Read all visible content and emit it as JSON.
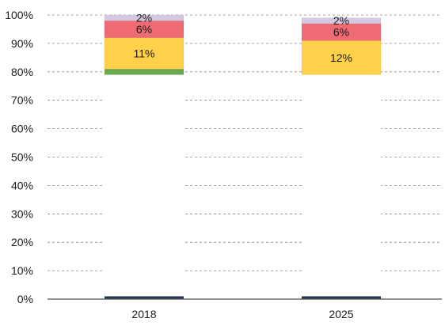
{
  "chart_data": {
    "type": "bar",
    "stacked": true,
    "categories": [
      "2018",
      "2025"
    ],
    "ylim": [
      0,
      100
    ],
    "y_unit": "%",
    "y_ticks": [
      "0%",
      "10%",
      "20%",
      "30%",
      "40%",
      "50%",
      "60%",
      "70%",
      "80%",
      "90%",
      "100%"
    ],
    "grid": "dashed horizontal",
    "segments": [
      {
        "color": "#243451",
        "values": [
          1,
          1
        ],
        "labels": [
          "",
          ""
        ]
      },
      {
        "color": "#ffffff",
        "values": [
          78,
          78
        ],
        "labels": [
          "",
          ""
        ]
      },
      {
        "color": "#6aa84f",
        "values": [
          2,
          0
        ],
        "labels": [
          "",
          ""
        ]
      },
      {
        "color": "#ffd04a",
        "values": [
          11,
          12
        ],
        "labels": [
          "11%",
          "12%"
        ]
      },
      {
        "color": "#ef6b73",
        "values": [
          6,
          6
        ],
        "labels": [
          "6%",
          "6%"
        ]
      },
      {
        "color": "#d5c8e2",
        "values": [
          2,
          2
        ],
        "labels": [
          "2%",
          "2%"
        ]
      }
    ]
  }
}
